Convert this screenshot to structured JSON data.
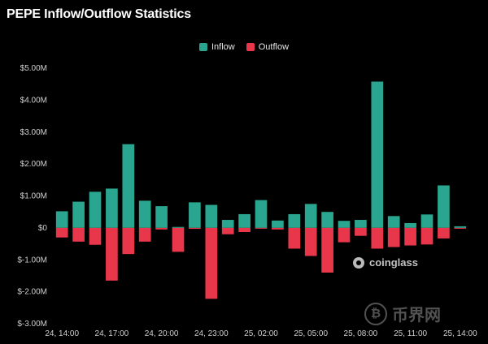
{
  "chart_data": {
    "type": "bar",
    "title": "PEPE Inflow/Outflow Statistics",
    "xlabel": "",
    "ylabel": "",
    "ylim": [
      -3,
      5
    ],
    "yticks": [
      5,
      4,
      3,
      2,
      1,
      0,
      -1,
      -2,
      -3
    ],
    "ytick_labels": [
      "$5.00M",
      "$4.00M",
      "$3.00M",
      "$2.00M",
      "$1.00M",
      "$0",
      "$-1.00M",
      "$-2.00M",
      "$-3.00M"
    ],
    "xtick_labels": [
      "24, 14:00",
      "24, 17:00",
      "24, 20:00",
      "24, 23:00",
      "25, 02:00",
      "25, 05:00",
      "25, 08:00",
      "25, 11:00",
      "25, 14:00"
    ],
    "xtick_every": 3,
    "legend": "top-center",
    "grid": false,
    "series": [
      {
        "name": "Inflow",
        "color": "#2aa58f",
        "values": [
          0.52,
          0.82,
          1.13,
          1.23,
          2.62,
          0.85,
          0.68,
          0.03,
          0.8,
          0.72,
          0.25,
          0.43,
          0.87,
          0.23,
          0.43,
          0.75,
          0.5,
          0.22,
          0.25,
          4.58,
          0.37,
          0.15,
          0.42,
          1.33,
          0.05
        ]
      },
      {
        "name": "Outflow",
        "color": "#e8364a",
        "values": [
          -0.3,
          -0.43,
          -0.53,
          -1.65,
          -0.82,
          -0.43,
          -0.05,
          -0.75,
          -0.03,
          -2.22,
          -0.2,
          -0.13,
          -0.02,
          -0.05,
          -0.65,
          -0.88,
          -1.4,
          -0.45,
          -0.25,
          -0.65,
          -0.6,
          -0.55,
          -0.52,
          -0.33,
          -0.02
        ]
      }
    ]
  },
  "watermark": {
    "text": "coinglass",
    "icon": "coinglass-logo-icon"
  },
  "site_mark": {
    "text": "币界网",
    "icon": "bitcoin-coin-icon"
  }
}
